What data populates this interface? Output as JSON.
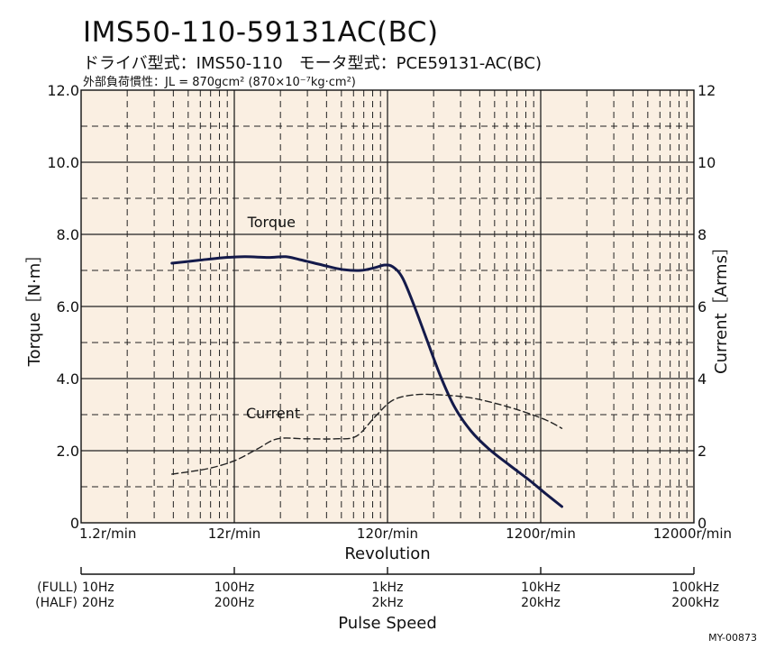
{
  "header": {
    "title": "IMS50-110-59131AC(BC)",
    "subtitle": "ドライバ型式：IMS50-110　モータ型式：PCE59131-AC(BC)",
    "inertia": "外部負荷慣性：JL = 870gcm² (870×10⁻⁷kg·cm²)"
  },
  "doc_id": "MY-00873",
  "colors": {
    "plot_bg": "#faefe2",
    "torque_line": "#141a4a",
    "current_line": "#222222",
    "grid": "#222222"
  },
  "chart_data": {
    "type": "line",
    "x_scale": "log",
    "xlabel": "Revolution",
    "xunit": "r/min",
    "xlim": [
      1.2,
      12000
    ],
    "x_ticks": [
      1.2,
      12,
      120,
      1200,
      12000
    ],
    "x_tick_labels": [
      "1.2r/min",
      "12r/min",
      "120r/min",
      "1200r/min",
      "12000r/min"
    ],
    "ylabel_left": "Torque［N·m］",
    "ylim_left": [
      0,
      12
    ],
    "y_ticks_left": [
      "0",
      "2.0",
      "4.0",
      "6.0",
      "8.0",
      "10.0",
      "12.0"
    ],
    "ylabel_right": "Current［Arms］",
    "ylim_right": [
      0,
      12
    ],
    "y_ticks_right": [
      "0",
      "2",
      "4",
      "6",
      "8",
      "10",
      "12"
    ],
    "grid": true,
    "series": [
      {
        "name": "Torque",
        "axis": "left",
        "style": "solid",
        "points": [
          [
            4.7,
            7.2
          ],
          [
            7,
            7.28
          ],
          [
            10,
            7.35
          ],
          [
            14,
            7.38
          ],
          [
            20,
            7.36
          ],
          [
            26,
            7.38
          ],
          [
            32,
            7.3
          ],
          [
            45,
            7.15
          ],
          [
            60,
            7.03
          ],
          [
            80,
            7.0
          ],
          [
            100,
            7.08
          ],
          [
            115,
            7.15
          ],
          [
            130,
            7.1
          ],
          [
            150,
            6.8
          ],
          [
            180,
            6.0
          ],
          [
            220,
            5.0
          ],
          [
            270,
            4.0
          ],
          [
            330,
            3.2
          ],
          [
            420,
            2.55
          ],
          [
            550,
            2.05
          ],
          [
            750,
            1.6
          ],
          [
            1000,
            1.2
          ],
          [
            1300,
            0.8
          ],
          [
            1650,
            0.45
          ]
        ]
      },
      {
        "name": "Current",
        "axis": "right",
        "style": "dashed",
        "points": [
          [
            4.7,
            1.35
          ],
          [
            8,
            1.5
          ],
          [
            12,
            1.72
          ],
          [
            17,
            2.05
          ],
          [
            23,
            2.33
          ],
          [
            35,
            2.33
          ],
          [
            55,
            2.33
          ],
          [
            75,
            2.4
          ],
          [
            100,
            2.95
          ],
          [
            130,
            3.4
          ],
          [
            180,
            3.55
          ],
          [
            260,
            3.55
          ],
          [
            400,
            3.48
          ],
          [
            600,
            3.32
          ],
          [
            900,
            3.1
          ],
          [
            1300,
            2.85
          ],
          [
            1650,
            2.62
          ]
        ]
      }
    ],
    "annotations": [
      {
        "text": "Torque",
        "x": 21,
        "y": 8.2,
        "axis": "left"
      },
      {
        "text": "Current",
        "x": 21.5,
        "y": 2.9,
        "axis": "right"
      }
    ]
  },
  "pulse_axis": {
    "title": "Pulse Speed",
    "row_labels": [
      "(FULL)",
      "(HALF)"
    ],
    "full": [
      "10Hz",
      "100Hz",
      "1kHz",
      "10kHz",
      "100kHz"
    ],
    "half": [
      "20Hz",
      "200Hz",
      "2kHz",
      "20kHz",
      "200kHz"
    ]
  }
}
